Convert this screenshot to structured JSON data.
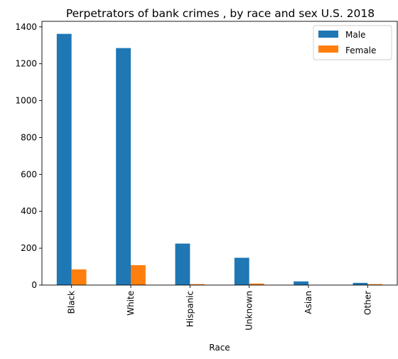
{
  "chart_data": {
    "type": "bar",
    "title": "Perpetrators of bank crimes , by race and sex U.S. 2018",
    "xlabel": "Race",
    "ylabel": "",
    "categories": [
      "Black",
      "White",
      "Hispanic",
      "Unknown",
      "Asian",
      "Other"
    ],
    "series": [
      {
        "name": "Male",
        "color": "#1f77b4",
        "values": [
          1362,
          1285,
          225,
          148,
          20,
          12
        ]
      },
      {
        "name": "Female",
        "color": "#ff7f0e",
        "values": [
          85,
          108,
          5,
          8,
          1,
          5
        ]
      }
    ],
    "ylim": [
      0,
      1430
    ],
    "yticks": [
      0,
      200,
      400,
      600,
      800,
      1000,
      1200,
      1400
    ],
    "legend_position": "top-right",
    "grid": false
  }
}
